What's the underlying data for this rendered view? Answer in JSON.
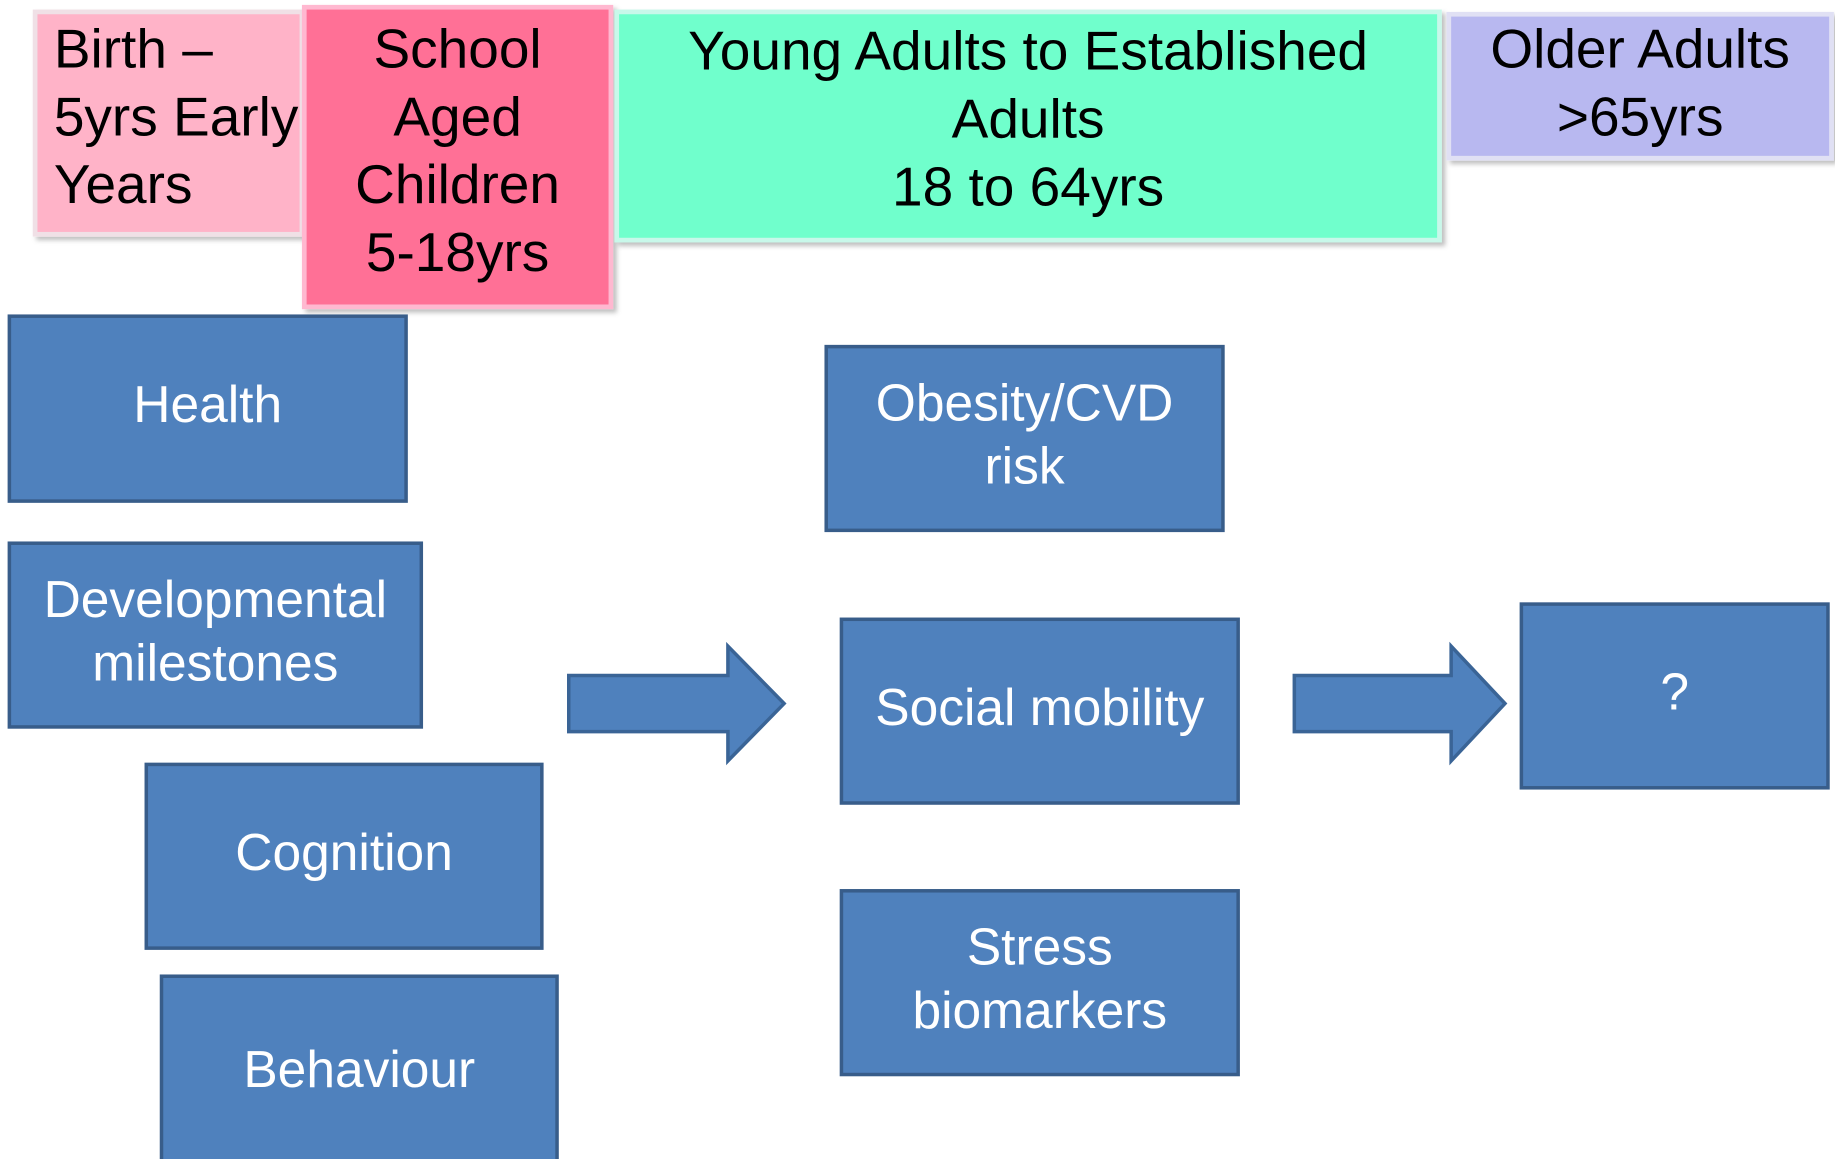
{
  "stages": [
    {
      "lines": [
        "Birth –",
        "5yrs Early",
        "Years"
      ]
    },
    {
      "lines": [
        "School",
        "Aged",
        "Children",
        "5-18yrs"
      ]
    },
    {
      "lines": [
        "Young Adults to Established",
        "Adults",
        "18 to 64yrs"
      ]
    },
    {
      "lines": [
        "Older Adults",
        ">65yrs"
      ]
    }
  ],
  "boxes": [
    {
      "lines": [
        "Health"
      ]
    },
    {
      "lines": [
        "Developmental",
        "milestones"
      ]
    },
    {
      "lines": [
        "Cognition"
      ]
    },
    {
      "lines": [
        "Behaviour"
      ]
    },
    {
      "lines": [
        "Obesity/CVD",
        "risk"
      ]
    },
    {
      "lines": [
        "Social mobility"
      ]
    },
    {
      "lines": [
        "Stress",
        "biomarkers"
      ]
    },
    {
      "lines": [
        "?"
      ]
    }
  ]
}
